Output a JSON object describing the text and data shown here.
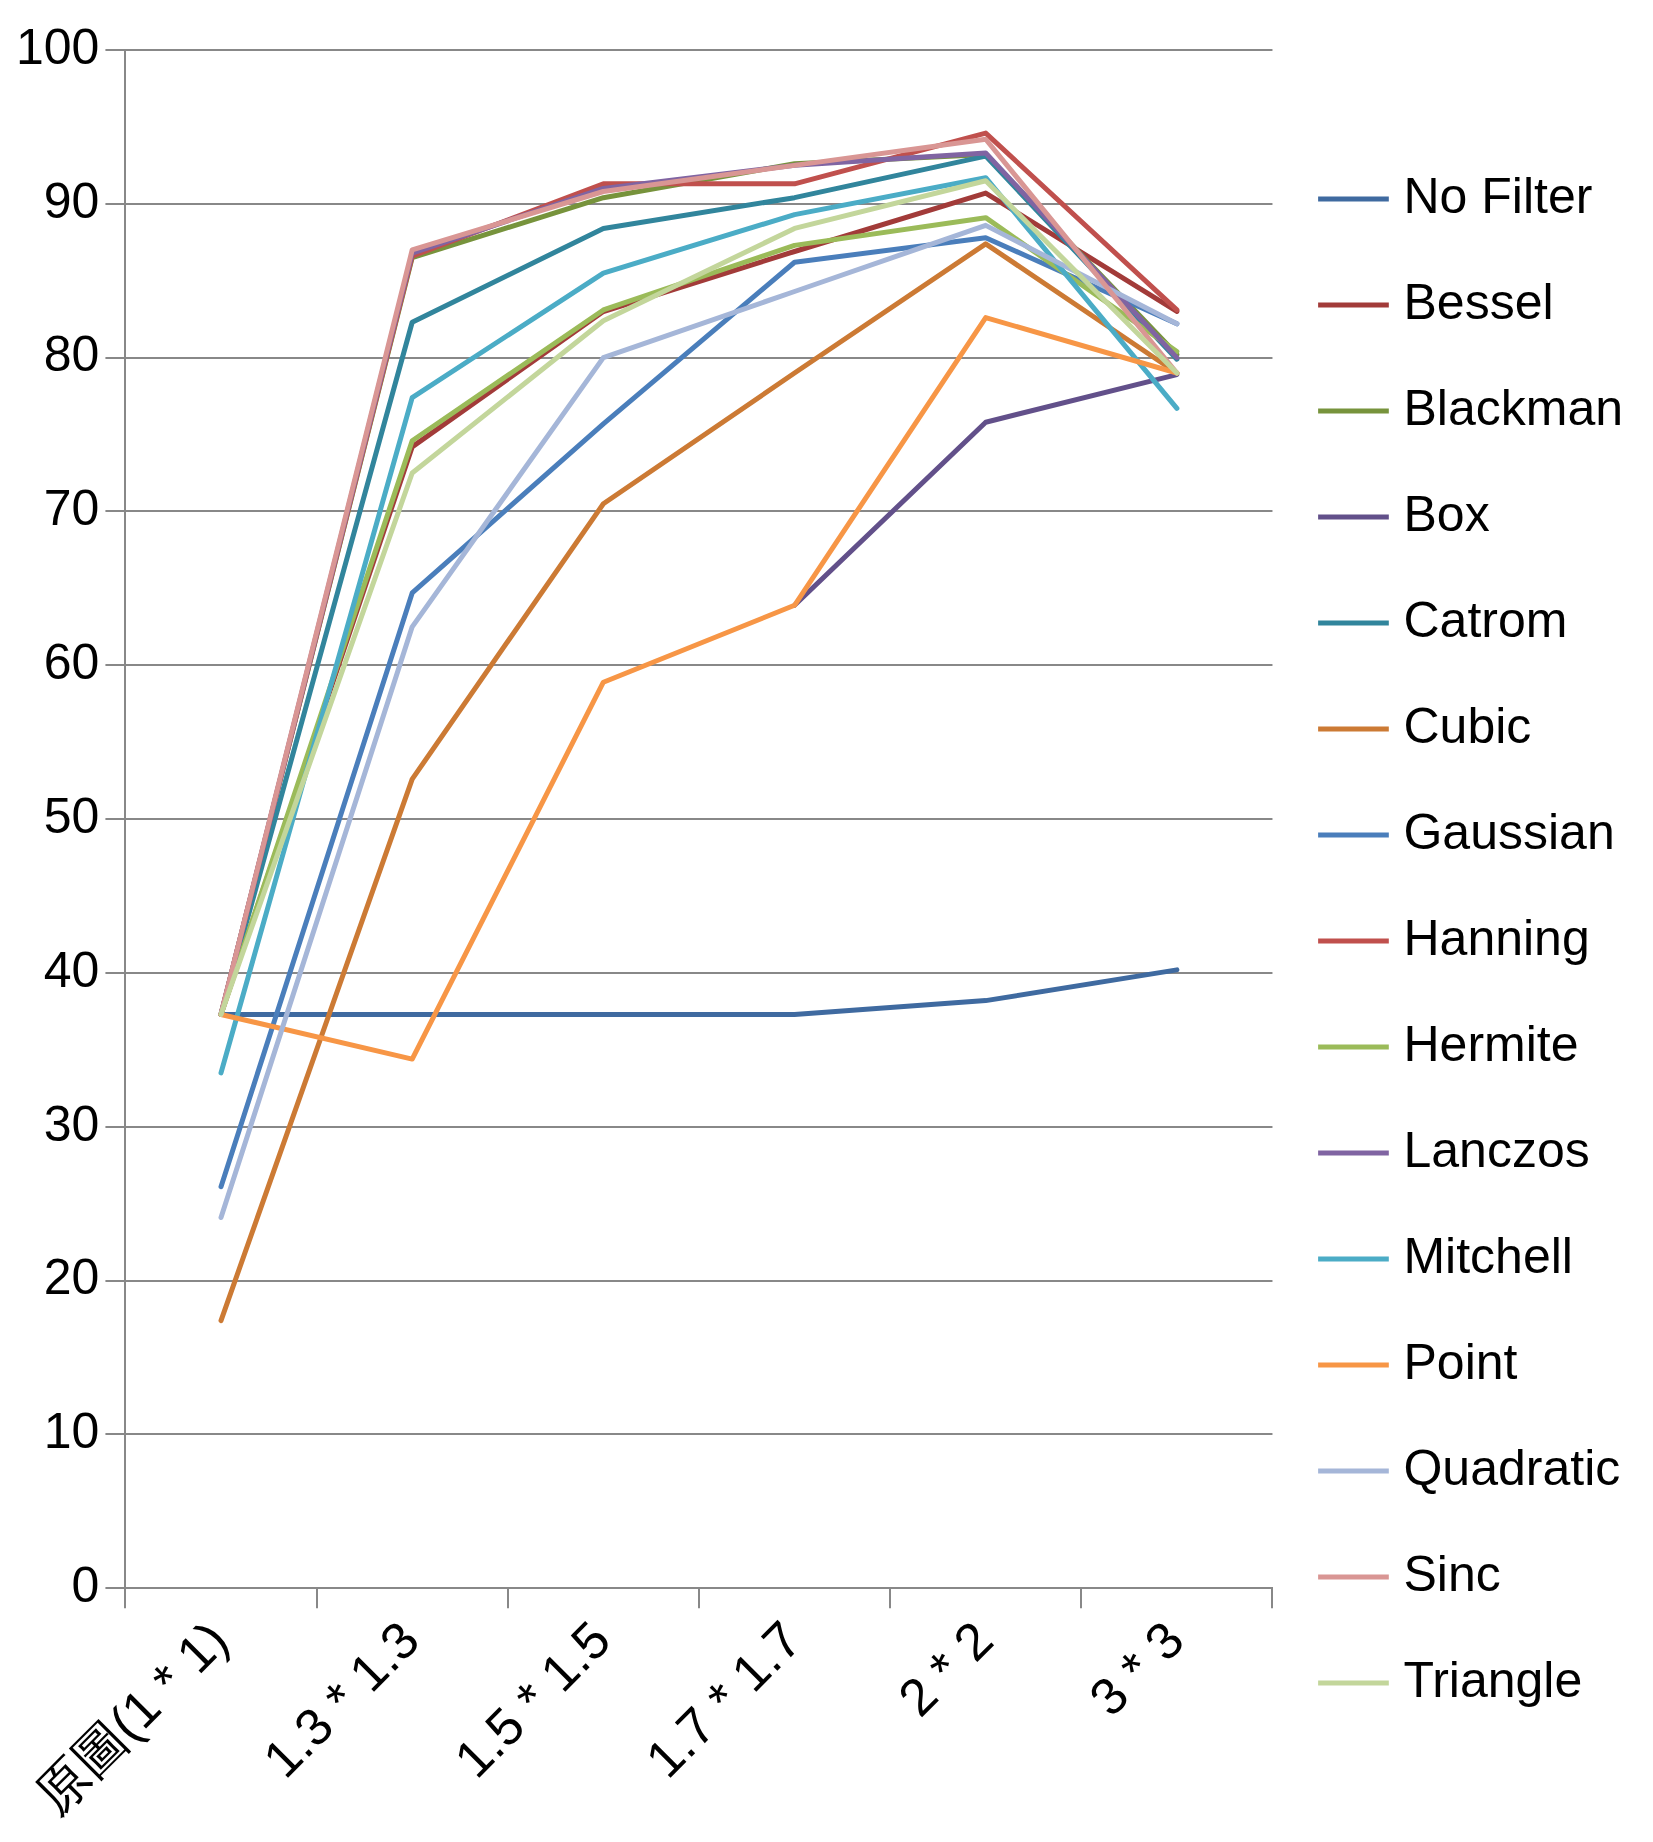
{
  "chart_data": {
    "type": "line",
    "categories": [
      "原圖(1 * 1)",
      "1.3 * 1.3",
      "1.5 * 1.5",
      "1.7 * 1.7",
      "2 * 2",
      "3 * 3"
    ],
    "ylim": [
      0,
      100
    ],
    "yticks": [
      0,
      10,
      20,
      30,
      40,
      50,
      60,
      70,
      80,
      90,
      100
    ],
    "grid": "y",
    "legend": "right",
    "marker": "none",
    "line_style": "solid",
    "series": [
      {
        "name": "No Filter",
        "color": "#3f6aa0",
        "values": [
          37.3,
          37.3,
          37.3,
          37.3,
          38.2,
          40.2
        ]
      },
      {
        "name": "Bessel",
        "color": "#a23b39",
        "values": [
          37.3,
          74.2,
          83,
          86.9,
          90.7,
          83
        ]
      },
      {
        "name": "Blackman",
        "color": "#77933c",
        "values": [
          37.3,
          86.5,
          90.4,
          92.6,
          93.2,
          80.2
        ]
      },
      {
        "name": "Box",
        "color": "#62508a",
        "values": [
          null,
          null,
          null,
          63.9,
          75.8,
          78.9
        ]
      },
      {
        "name": "Catrom",
        "color": "#31859c",
        "values": [
          37.3,
          82.3,
          88.4,
          90.4,
          93.1,
          79.9
        ]
      },
      {
        "name": "Cubic",
        "color": "#cc7a34",
        "values": [
          17.4,
          52.6,
          70.5,
          79,
          87.4,
          79
        ]
      },
      {
        "name": "Gaussian",
        "color": "#4a7ebb",
        "values": [
          26.1,
          64.7,
          75.7,
          86.2,
          87.8,
          82.2
        ]
      },
      {
        "name": "Hanning",
        "color": "#c0504d",
        "values": [
          37.3,
          86.6,
          91.3,
          91.3,
          94.6,
          83.1
        ]
      },
      {
        "name": "Hermite",
        "color": "#9bbb59",
        "values": [
          37.3,
          74.6,
          83.1,
          87.3,
          89.1,
          80.4
        ]
      },
      {
        "name": "Lanczos",
        "color": "#8064a2",
        "values": [
          37.3,
          86.8,
          91,
          92.5,
          93.3,
          80
        ]
      },
      {
        "name": "Mitchell",
        "color": "#4bacc6",
        "values": [
          33.5,
          77.4,
          85.5,
          89.3,
          91.7,
          76.7
        ]
      },
      {
        "name": "Point",
        "color": "#f79646",
        "values": [
          37.3,
          34.4,
          58.9,
          63.9,
          82.6,
          79
        ]
      },
      {
        "name": "Quadratic",
        "color": "#a5b6d8",
        "values": [
          24.1,
          62.5,
          80,
          84.3,
          88.6,
          82.2
        ]
      },
      {
        "name": "Sinc",
        "color": "#d99694",
        "values": [
          37.3,
          87,
          90.8,
          92.5,
          94.2,
          79
        ]
      },
      {
        "name": "Triangle",
        "color": "#c3d69b",
        "values": [
          37.3,
          72.5,
          82.4,
          88.4,
          91.5,
          79
        ]
      }
    ]
  }
}
